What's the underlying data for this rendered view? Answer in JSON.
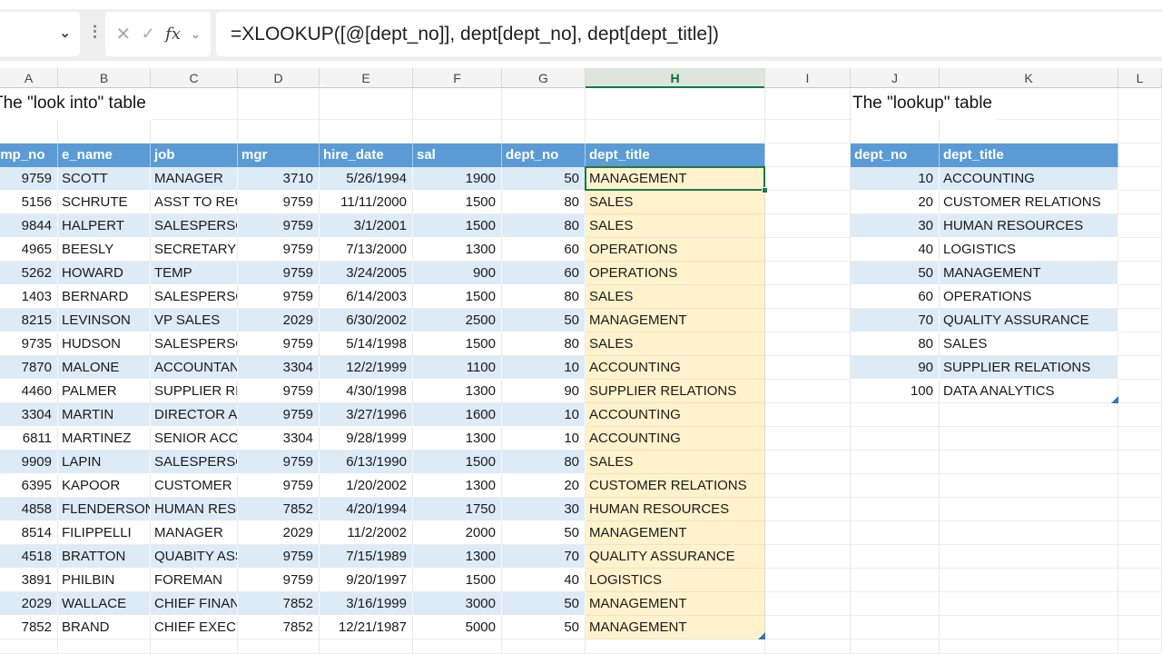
{
  "formula_bar": {
    "name_box_value": "",
    "name_box_chevron": "⌄",
    "grip_icon": "⋮",
    "cancel_label": "✕",
    "enter_label": "✓",
    "fx_label": "fx",
    "fx_chevron": "⌄",
    "formula": "=XLOOKUP([@[dept_no]], dept[dept_no], dept[dept_title])"
  },
  "columns": [
    "A",
    "B",
    "C",
    "D",
    "E",
    "F",
    "G",
    "H",
    "I",
    "J",
    "K",
    "L"
  ],
  "selected_column": "H",
  "titles": {
    "left": "The \"look into\" table",
    "right": "The \"lookup\" table"
  },
  "emp_table": {
    "headers": [
      "emp_no",
      "e_name",
      "job",
      "mgr",
      "hire_date",
      "sal",
      "dept_no",
      "dept_title"
    ],
    "rows": [
      [
        "9759",
        "SCOTT",
        "MANAGER",
        "3710",
        "5/26/1994",
        "1900",
        "50",
        "MANAGEMENT"
      ],
      [
        "5156",
        "SCHRUTE",
        "ASST TO REGIONAL MGR",
        "9759",
        "11/11/2000",
        "1500",
        "80",
        "SALES"
      ],
      [
        "9844",
        "HALPERT",
        "SALESPERSON",
        "9759",
        "3/1/2001",
        "1500",
        "80",
        "SALES"
      ],
      [
        "4965",
        "BEESLY",
        "SECRETARY",
        "9759",
        "7/13/2000",
        "1300",
        "60",
        "OPERATIONS"
      ],
      [
        "5262",
        "HOWARD",
        "TEMP",
        "9759",
        "3/24/2005",
        "900",
        "60",
        "OPERATIONS"
      ],
      [
        "1403",
        "BERNARD",
        "SALESPERSON",
        "9759",
        "6/14/2003",
        "1500",
        "80",
        "SALES"
      ],
      [
        "8215",
        "LEVINSON",
        "VP SALES",
        "2029",
        "6/30/2002",
        "2500",
        "50",
        "MANAGEMENT"
      ],
      [
        "9735",
        "HUDSON",
        "SALESPERSON",
        "9759",
        "5/14/1998",
        "1500",
        "80",
        "SALES"
      ],
      [
        "7870",
        "MALONE",
        "ACCOUNTANT",
        "3304",
        "12/2/1999",
        "1100",
        "10",
        "ACCOUNTING"
      ],
      [
        "4460",
        "PALMER",
        "SUPPLIER RELATIONS",
        "9759",
        "4/30/1998",
        "1300",
        "90",
        "SUPPLIER RELATIONS"
      ],
      [
        "3304",
        "MARTIN",
        "DIRECTOR ACCOUNTING",
        "9759",
        "3/27/1996",
        "1600",
        "10",
        "ACCOUNTING"
      ],
      [
        "6811",
        "MARTINEZ",
        "SENIOR ACCOUNTANT",
        "3304",
        "9/28/1999",
        "1300",
        "10",
        "ACCOUNTING"
      ],
      [
        "9909",
        "LAPIN",
        "SALESPERSON",
        "9759",
        "6/13/1990",
        "1500",
        "80",
        "SALES"
      ],
      [
        "6395",
        "KAPOOR",
        "CUSTOMER RELATIONS",
        "9759",
        "1/20/2002",
        "1300",
        "20",
        "CUSTOMER RELATIONS"
      ],
      [
        "4858",
        "FLENDERSON",
        "HUMAN RESOURCES",
        "7852",
        "4/20/1994",
        "1750",
        "30",
        "HUMAN RESOURCES"
      ],
      [
        "8514",
        "FILIPPELLI",
        "MANAGER",
        "2029",
        "11/2/2002",
        "2000",
        "50",
        "MANAGEMENT"
      ],
      [
        "4518",
        "BRATTON",
        "QUABITY ASSURANCE",
        "9759",
        "7/15/1989",
        "1300",
        "70",
        "QUALITY ASSURANCE"
      ],
      [
        "3891",
        "PHILBIN",
        "FOREMAN",
        "9759",
        "9/20/1997",
        "1500",
        "40",
        "LOGISTICS"
      ],
      [
        "2029",
        "WALLACE",
        "CHIEF FINANCIAL OFF",
        "7852",
        "3/16/1999",
        "3000",
        "50",
        "MANAGEMENT"
      ],
      [
        "7852",
        "BRAND",
        "CHIEF EXECUTIVE OFF",
        "7852",
        "12/21/1987",
        "5000",
        "50",
        "MANAGEMENT"
      ]
    ]
  },
  "dept_table": {
    "headers": [
      "dept_no",
      "dept_title"
    ],
    "rows": [
      [
        "10",
        "ACCOUNTING"
      ],
      [
        "20",
        "CUSTOMER RELATIONS"
      ],
      [
        "30",
        "HUMAN RESOURCES"
      ],
      [
        "40",
        "LOGISTICS"
      ],
      [
        "50",
        "MANAGEMENT"
      ],
      [
        "60",
        "OPERATIONS"
      ],
      [
        "70",
        "QUALITY ASSURANCE"
      ],
      [
        "80",
        "SALES"
      ],
      [
        "90",
        "SUPPLIER RELATIONS"
      ],
      [
        "100",
        "DATA ANALYTICS"
      ]
    ]
  },
  "colors": {
    "table_header_blue": "#5B9BD5",
    "banded_row_blue": "#DDEBF7",
    "result_column_cream": "#FFF2CC",
    "selection_green": "#1B7A43",
    "column_select_green": "#107C41",
    "table_handle_blue": "#2E75B6",
    "topbar_gray": "#F0EFEF"
  }
}
